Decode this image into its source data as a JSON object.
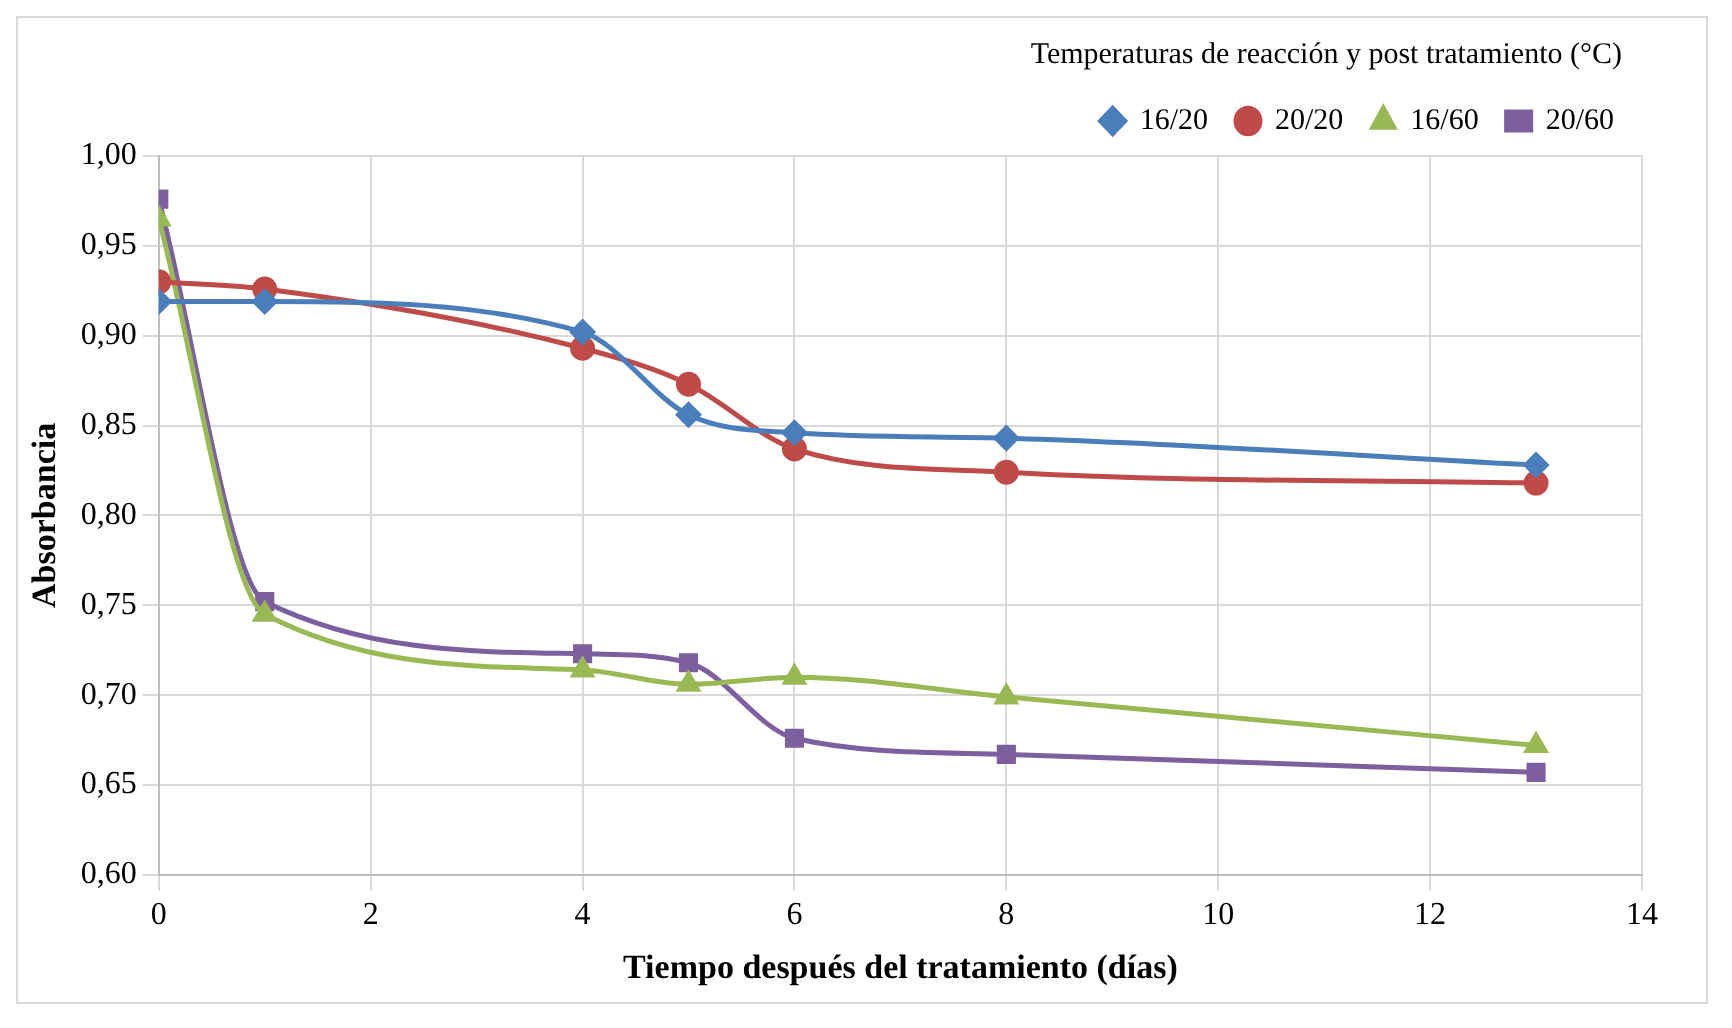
{
  "chart_data": {
    "type": "line",
    "xlabel": "Tiempo después del tratamiento (días)",
    "ylabel": "Absorbancia",
    "legend_title": "Temperaturas de reacción y post tratamiento (°C)",
    "legend": "top right",
    "grid": true,
    "line_style": "solid",
    "x": [
      0,
      1,
      4,
      5,
      6,
      8,
      13
    ],
    "xlim": [
      0,
      14
    ],
    "xticks": [
      0,
      2,
      4,
      6,
      8,
      10,
      12,
      14
    ],
    "ylim": [
      0.6,
      1.0
    ],
    "yticks": [
      {
        "value": 0.6,
        "label": "0,60"
      },
      {
        "value": 0.65,
        "label": "0,65"
      },
      {
        "value": 0.7,
        "label": "0,70"
      },
      {
        "value": 0.75,
        "label": "0,75"
      },
      {
        "value": 0.8,
        "label": "0,80"
      },
      {
        "value": 0.85,
        "label": "0,85"
      },
      {
        "value": 0.9,
        "label": "0,90"
      },
      {
        "value": 0.95,
        "label": "0,95"
      },
      {
        "value": 1.0,
        "label": "1,00"
      }
    ],
    "series": [
      {
        "name": "16/20",
        "color": "#4a7ebb",
        "marker": "diamond",
        "values": [
          0.919,
          0.919,
          0.902,
          0.856,
          0.846,
          0.843,
          0.828
        ]
      },
      {
        "name": "20/20",
        "color": "#be4b48",
        "marker": "circle",
        "values": [
          0.93,
          0.926,
          0.893,
          0.873,
          0.837,
          0.824,
          0.818
        ]
      },
      {
        "name": "16/60",
        "color": "#98b954",
        "marker": "triangle",
        "values": [
          0.965,
          0.745,
          0.714,
          0.706,
          0.71,
          0.699,
          0.672
        ]
      },
      {
        "name": "20/60",
        "color": "#7d5fa0",
        "marker": "square",
        "values": [
          0.976,
          0.752,
          0.723,
          0.718,
          0.676,
          0.667,
          0.657
        ]
      }
    ]
  }
}
